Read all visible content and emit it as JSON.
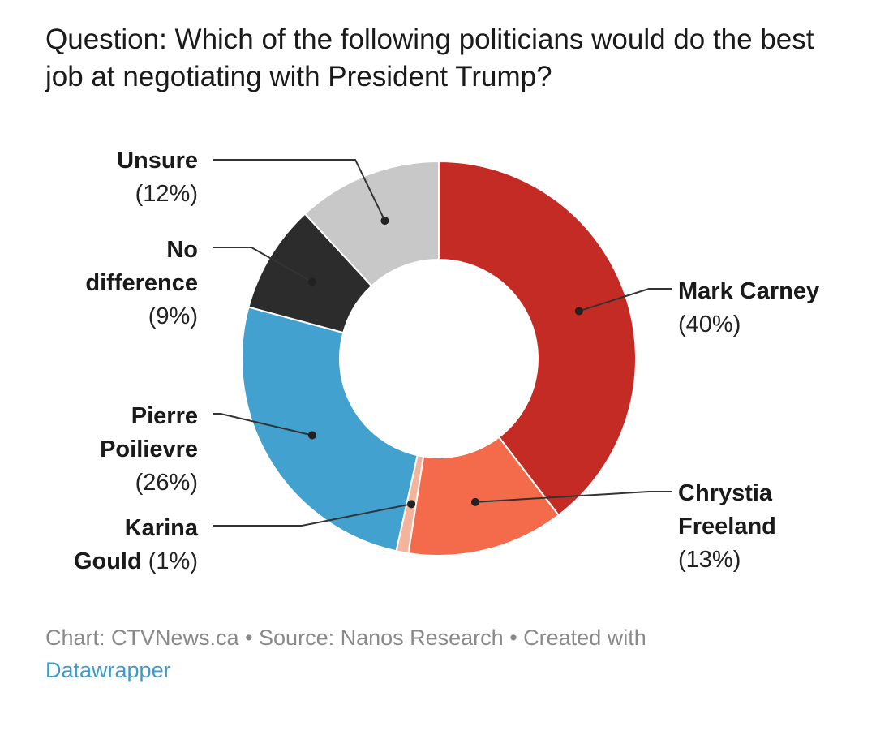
{
  "title": "Question: Which of the following politicians would do the best job at negotiating with President Trump?",
  "footer": {
    "chart_credit": "Chart: CTVNews.ca",
    "separator": " • ",
    "source": "Source: Nanos Research",
    "created_with": "Created with",
    "tool_link": "Datawrapper"
  },
  "chart_data": {
    "type": "pie",
    "donut": true,
    "title": "Question: Which of the following politicians would do the best job at negotiating with President Trump?",
    "slices": [
      {
        "key": "carney",
        "name_lines": [
          "Mark Carney"
        ],
        "pct_label": "(40%)",
        "value": 40,
        "color": "#c42b24"
      },
      {
        "key": "freeland",
        "name_lines": [
          "Chrystia",
          "Freeland"
        ],
        "pct_label": "(13%)",
        "value": 13,
        "color": "#f36b4a"
      },
      {
        "key": "gould",
        "name_lines": [
          "Karina",
          "Gould"
        ],
        "pct_label": "(1%)",
        "value": 1,
        "color": "#f4b49c"
      },
      {
        "key": "poilievre",
        "name_lines": [
          "Pierre",
          "Poilievre"
        ],
        "pct_label": "(26%)",
        "value": 26,
        "color": "#42a1cf"
      },
      {
        "key": "nodiff",
        "name_lines": [
          "No",
          "difference"
        ],
        "pct_label": "(9%)",
        "value": 9,
        "color": "#2c2c2c"
      },
      {
        "key": "unsure",
        "name_lines": [
          "Unsure"
        ],
        "pct_label": "(12%)",
        "value": 12,
        "color": "#c8c8c8"
      }
    ]
  }
}
